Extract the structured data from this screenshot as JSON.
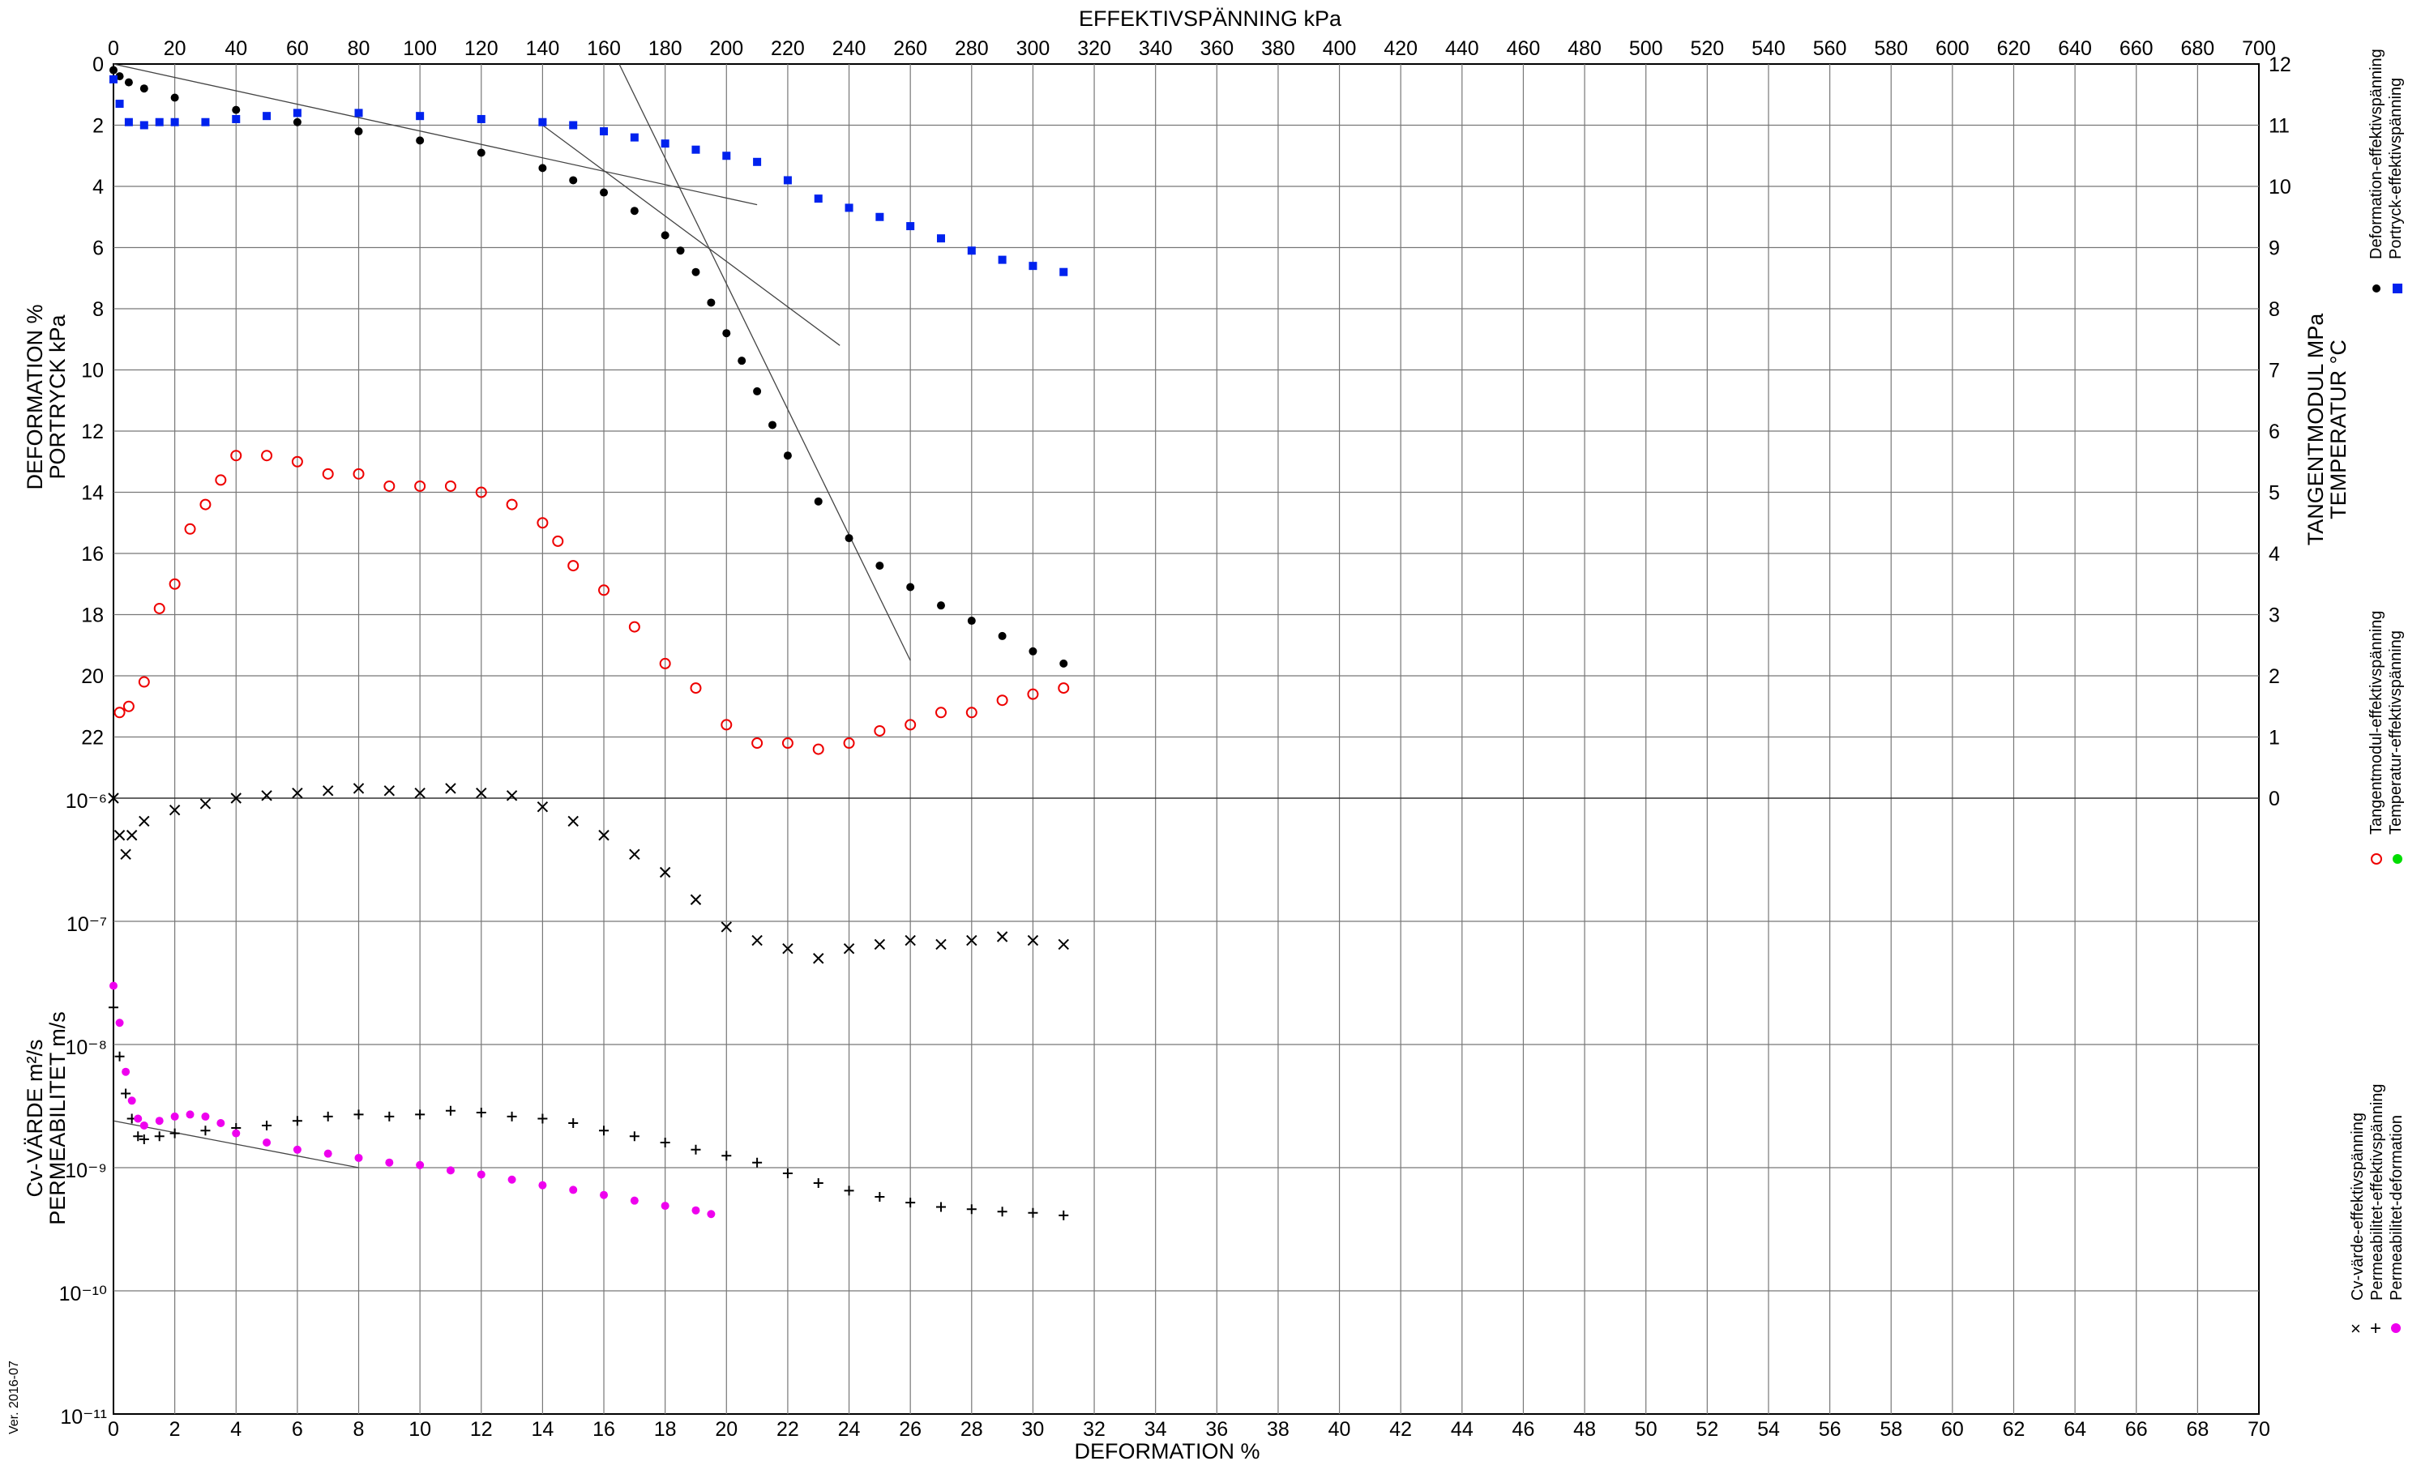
{
  "chart_data": {
    "type": "scatter",
    "title": "",
    "colors": {
      "deformation": "#000000",
      "portryck": "#0022ee",
      "tangentmodul": "#ee0000",
      "temperatur": "#00dd00",
      "cv": "#000000",
      "permeabilitet": "#000000",
      "perm_def": "#ee00ee",
      "grid": "#777777"
    },
    "axes": {
      "top_x": {
        "label": "EFFEKTIVSPÄNNING  kPa",
        "range": [
          0,
          700
        ],
        "ticks": [
          0,
          20,
          40,
          60,
          80,
          100,
          120,
          140,
          160,
          180,
          200,
          220,
          240,
          260,
          280,
          300,
          320,
          340,
          360,
          380,
          400,
          420,
          440,
          460,
          480,
          500,
          520,
          540,
          560,
          580,
          600,
          620,
          640,
          660,
          680,
          700
        ]
      },
      "bottom_x": {
        "label": "DEFORMATION  %",
        "range": [
          0,
          70
        ],
        "ticks": [
          0,
          2,
          4,
          6,
          8,
          10,
          12,
          14,
          16,
          18,
          20,
          22,
          24,
          26,
          28,
          30,
          32,
          34,
          36,
          38,
          40,
          42,
          44,
          46,
          48,
          50,
          52,
          54,
          56,
          58,
          60,
          62,
          64,
          66,
          68,
          70
        ]
      },
      "left_top": {
        "label1": "DEFORMATION  %",
        "label2": "PORTRYCK  kPa",
        "range": [
          0,
          24
        ],
        "inverted": true,
        "ticks": [
          0,
          2,
          4,
          6,
          8,
          10,
          12,
          14,
          16,
          18,
          20,
          22
        ]
      },
      "right_top": {
        "label1": "TANGENTMODUL MPa",
        "label2": "TEMPERATUR °C",
        "range": [
          0,
          12
        ],
        "ticks": [
          0,
          1,
          2,
          3,
          4,
          5,
          6,
          7,
          8,
          9,
          10,
          11,
          12
        ]
      },
      "left_bottom": {
        "label1": "Cv-VÄRDE  m²/s",
        "label2": "PERMEABILITET  m/s",
        "scale": "log",
        "range": [
          "1e-11",
          "1e-6"
        ],
        "ticks": [
          "10⁻⁶",
          "10⁻⁷",
          "10⁻⁸",
          "10⁻⁹",
          "10⁻¹⁰",
          "10⁻¹¹"
        ]
      }
    },
    "legend": {
      "group1": [
        "Deformation-effektivspänning",
        "Portryck-effektivspänning"
      ],
      "group2": [
        "Tangentmodul-effektivspänning",
        "Temperatur-effektivspänning"
      ],
      "group3": [
        "Cv-värde-effektivspänning",
        "Permeabilitet-effektivspänning",
        "Permeabilitet-deformation"
      ]
    },
    "version": "Ver. 2016-07",
    "series": {
      "deformation_vs_stress": {
        "x_kpa": [
          0,
          2,
          5,
          10,
          20,
          40,
          60,
          80,
          100,
          120,
          140,
          150,
          160,
          170,
          180,
          185,
          190,
          195,
          200,
          205,
          210,
          215,
          220,
          230,
          240,
          250,
          260,
          270,
          280,
          290,
          300,
          310
        ],
        "y_pct": [
          0.2,
          0.4,
          0.6,
          0.8,
          1.1,
          1.5,
          1.9,
          2.2,
          2.5,
          2.9,
          3.4,
          3.8,
          4.2,
          4.8,
          5.6,
          6.1,
          6.8,
          7.8,
          8.8,
          9.7,
          10.7,
          11.8,
          12.8,
          14.3,
          15.5,
          16.4,
          17.1,
          17.7,
          18.2,
          18.7,
          19.2,
          19.6
        ]
      },
      "portryck_vs_stress": {
        "x_kpa": [
          0,
          2,
          5,
          10,
          15,
          20,
          30,
          40,
          50,
          60,
          80,
          100,
          120,
          140,
          150,
          160,
          170,
          180,
          190,
          200,
          210,
          220,
          230,
          240,
          250,
          260,
          270,
          280,
          290,
          300,
          310
        ],
        "y_kpa": [
          0.5,
          1.3,
          1.9,
          2.0,
          1.9,
          1.9,
          1.9,
          1.8,
          1.7,
          1.6,
          1.6,
          1.7,
          1.8,
          1.9,
          2.0,
          2.2,
          2.4,
          2.6,
          2.8,
          3.0,
          3.2,
          3.8,
          4.4,
          4.7,
          5.0,
          5.3,
          5.7,
          6.1,
          6.4,
          6.6,
          6.8
        ]
      },
      "tangentmodul_vs_stress": {
        "x_kpa": [
          2,
          5,
          10,
          15,
          20,
          25,
          30,
          35,
          40,
          50,
          60,
          70,
          80,
          90,
          100,
          110,
          120,
          130,
          140,
          145,
          150,
          160,
          170,
          180,
          190,
          200,
          210,
          220,
          230,
          240,
          250,
          260,
          270,
          280,
          290,
          300,
          310
        ],
        "y_mpa": [
          1.4,
          1.5,
          1.9,
          3.1,
          3.5,
          4.4,
          4.8,
          5.2,
          5.6,
          5.6,
          5.5,
          5.3,
          5.3,
          5.1,
          5.1,
          5.1,
          5.0,
          4.8,
          4.5,
          4.2,
          3.8,
          3.4,
          2.8,
          2.2,
          1.8,
          1.2,
          0.9,
          0.9,
          0.8,
          0.9,
          1.1,
          1.2,
          1.4,
          1.4,
          1.6,
          1.7,
          1.8
        ]
      },
      "cv_vs_stress": {
        "x_kpa": [
          0,
          2,
          4,
          6,
          10,
          20,
          30,
          40,
          50,
          60,
          70,
          80,
          90,
          100,
          110,
          120,
          130,
          140,
          150,
          160,
          170,
          180,
          190,
          200,
          210,
          220,
          230,
          240,
          250,
          260,
          270,
          280,
          290,
          300,
          310
        ],
        "y_m2s": [
          "1e-6",
          "5e-7",
          "3.5e-7",
          "5e-7",
          "6.5e-7",
          "8e-7",
          "9e-7",
          "1e-6",
          "1.05e-6",
          "1.1e-6",
          "1.15e-6",
          "1.2e-6",
          "1.15e-6",
          "1.1e-6",
          "1.2e-6",
          "1.1e-6",
          "1.05e-6",
          "8.5e-7",
          "6.5e-7",
          "5e-7",
          "3.5e-7",
          "2.5e-7",
          "1.5e-7",
          "9e-8",
          "7e-8",
          "6e-8",
          "5e-8",
          "6e-8",
          "6.5e-8",
          "7e-8",
          "6.5e-8",
          "7e-8",
          "7.5e-8",
          "7e-8",
          "6.5e-8"
        ]
      },
      "permeabilitet_vs_stress": {
        "x_kpa": [
          0,
          2,
          4,
          6,
          8,
          10,
          15,
          20,
          30,
          40,
          50,
          60,
          70,
          80,
          90,
          100,
          110,
          120,
          130,
          140,
          150,
          160,
          170,
          180,
          190,
          200,
          210,
          220,
          230,
          240,
          250,
          260,
          270,
          280,
          290,
          300,
          310
        ],
        "y_ms": [
          "2e-8",
          "8e-9",
          "4e-9",
          "2.5e-9",
          "1.8e-9",
          "1.7e-9",
          "1.8e-9",
          "1.9e-9",
          "2e-9",
          "2.1e-9",
          "2.2e-9",
          "2.4e-9",
          "2.6e-9",
          "2.7e-9",
          "2.6e-9",
          "2.7e-9",
          "2.9e-9",
          "2.8e-9",
          "2.6e-9",
          "2.5e-9",
          "2.3e-9",
          "2e-9",
          "1.8e-9",
          "1.6e-9",
          "1.4e-9",
          "1.25e-9",
          "1.1e-9",
          "9e-10",
          "7.5e-10",
          "6.5e-10",
          "5.8e-10",
          "5.2e-10",
          "4.8e-10",
          "4.6e-10",
          "4.4e-10",
          "4.3e-10",
          "4.1e-10"
        ]
      },
      "permeabilitet_vs_deformation": {
        "x_pct": [
          0,
          0.2,
          0.4,
          0.6,
          0.8,
          1,
          1.5,
          2,
          2.5,
          3,
          3.5,
          4,
          5,
          6,
          7,
          8,
          9,
          10,
          11,
          12,
          13,
          14,
          15,
          16,
          17,
          18,
          19,
          19.5
        ],
        "y_ms": [
          "3e-8",
          "1.5e-8",
          "6e-9",
          "3.5e-9",
          "2.5e-9",
          "2.2e-9",
          "2.4e-9",
          "2.6e-9",
          "2.7e-9",
          "2.6e-9",
          "2.3e-9",
          "1.9e-9",
          "1.6e-9",
          "1.4e-9",
          "1.3e-9",
          "1.2e-9",
          "1.1e-9",
          "1.05e-9",
          "9.5e-10",
          "8.8e-10",
          "8e-10",
          "7.2e-10",
          "6.6e-10",
          "6e-10",
          "5.4e-10",
          "4.9e-10",
          "4.5e-10",
          "4.2e-10"
        ]
      }
    },
    "tangent_lines": [
      {
        "from": [
          0,
          0
        ],
        "to": [
          210,
          4.6
        ]
      },
      {
        "from": [
          140,
          2.0
        ],
        "to": [
          237,
          9.2
        ]
      },
      {
        "from": [
          165,
          0
        ],
        "to": [
          260,
          19.5
        ]
      },
      {
        "from": [
          0,
          2.4
        ],
        "to": [
          8,
          1.0
        ],
        "unit": "deformation_vs_permeability"
      }
    ]
  }
}
